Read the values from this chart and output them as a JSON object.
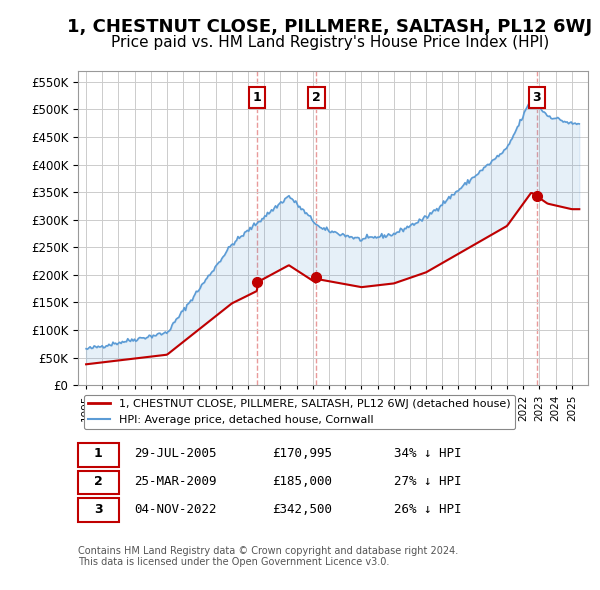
{
  "title": "1, CHESTNUT CLOSE, PILLMERE, SALTASH, PL12 6WJ",
  "subtitle": "Price paid vs. HM Land Registry's House Price Index (HPI)",
  "ylabel": "",
  "ylim": [
    0,
    570000
  ],
  "yticks": [
    0,
    50000,
    100000,
    150000,
    200000,
    250000,
    300000,
    350000,
    400000,
    450000,
    500000,
    550000
  ],
  "xlim_start": 1994.5,
  "xlim_end": 2026.0,
  "background_color": "#ffffff",
  "grid_color": "#cccccc",
  "hpi_color": "#5b9bd5",
  "price_color": "#c00000",
  "sale_marker_color": "#c00000",
  "transactions": [
    {
      "num": 1,
      "date_label": "29-JUL-2005",
      "price": 170995,
      "pct": "34%",
      "year": 2005.57
    },
    {
      "num": 2,
      "date_label": "25-MAR-2009",
      "price": 185000,
      "pct": "27%",
      "year": 2009.23
    },
    {
      "num": 3,
      "date_label": "04-NOV-2022",
      "price": 342500,
      "pct": "26%",
      "year": 2022.84
    }
  ],
  "legend_property_label": "1, CHESTNUT CLOSE, PILLMERE, SALTASH, PL12 6WJ (detached house)",
  "legend_hpi_label": "HPI: Average price, detached house, Cornwall",
  "footnote": "Contains HM Land Registry data © Crown copyright and database right 2024.\nThis data is licensed under the Open Government Licence v3.0.",
  "title_fontsize": 13,
  "subtitle_fontsize": 11,
  "table_rows": [
    [
      " 1 ",
      "29-JUL-2005",
      "£170,995",
      "34% ↓ HPI"
    ],
    [
      " 2 ",
      "25-MAR-2009",
      "£185,000",
      "27% ↓ HPI"
    ],
    [
      " 3 ",
      "04-NOV-2022",
      "£342,500",
      "26% ↓ HPI"
    ]
  ]
}
